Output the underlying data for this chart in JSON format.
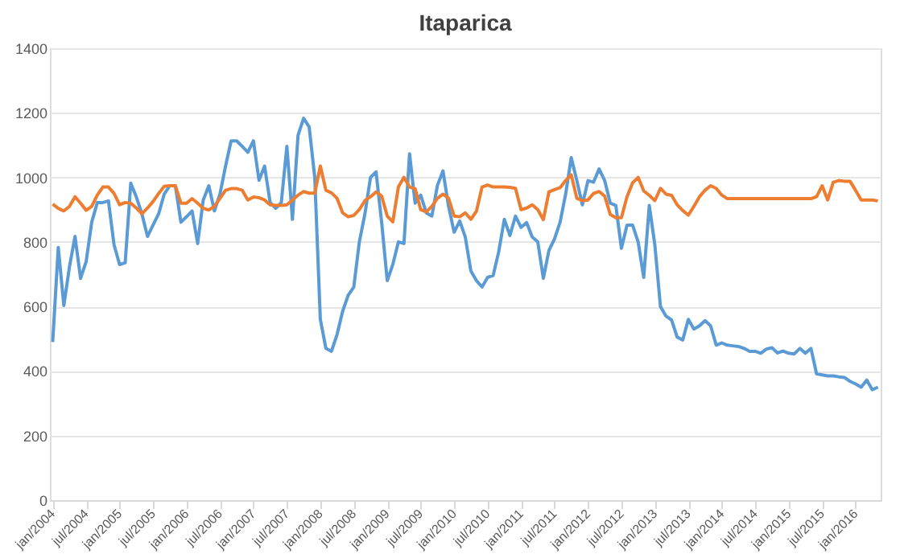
{
  "chart_data": {
    "type": "line",
    "title": "Itaparica",
    "categories": [
      "jan/2004",
      null,
      null,
      null,
      null,
      null,
      "jul/2004",
      null,
      null,
      null,
      null,
      null,
      "jan/2005",
      null,
      null,
      null,
      null,
      null,
      "jul/2005",
      null,
      null,
      null,
      null,
      null,
      "jan/2006",
      null,
      null,
      null,
      null,
      null,
      "jul/2006",
      null,
      null,
      null,
      null,
      null,
      "jan/2007",
      null,
      null,
      null,
      null,
      null,
      "jul/2007",
      null,
      null,
      null,
      null,
      null,
      "jan/2008",
      null,
      null,
      null,
      null,
      null,
      "jul/2008",
      null,
      null,
      null,
      null,
      null,
      "jan/2009",
      null,
      null,
      null,
      null,
      null,
      "jul/2009",
      null,
      null,
      null,
      null,
      null,
      "jan/2010",
      null,
      null,
      null,
      null,
      null,
      "jul/2010",
      null,
      null,
      null,
      null,
      null,
      "jan/2011",
      null,
      null,
      null,
      null,
      null,
      "jul/2011",
      null,
      null,
      null,
      null,
      null,
      "jan/2012",
      null,
      null,
      null,
      null,
      null,
      "jul/2012",
      null,
      null,
      null,
      null,
      null,
      "jan/2013",
      null,
      null,
      null,
      null,
      null,
      "jul/2013",
      null,
      null,
      null,
      null,
      null,
      "jan/2014",
      null,
      null,
      null,
      null,
      null,
      "jul/2014",
      null,
      null,
      null,
      null,
      null,
      "jan/2015",
      null,
      null,
      null,
      null,
      null,
      "jul/2015",
      null,
      null,
      null,
      null,
      null,
      "jan/2016",
      null,
      null,
      null,
      null
    ],
    "series": [
      {
        "color": "#5b9bd5",
        "values": [
          490,
          783,
          603,
          722,
          817,
          687,
          739,
          861,
          922,
          922,
          927,
          791,
          730,
          735,
          982,
          939,
          887,
          817,
          852,
          887,
          948,
          974,
          974,
          861,
          878,
          896,
          795,
          930,
          974,
          896,
          948,
          1035,
          1113,
          1113,
          1096,
          1078,
          1113,
          991,
          1035,
          922,
          904,
          922,
          1096,
          870,
          1130,
          1183,
          1156,
          1000,
          560,
          470,
          461,
          513,
          585,
          635,
          660,
          800,
          887,
          1000,
          1017,
          860,
          680,
          730,
          800,
          795,
          1073,
          920,
          945,
          890,
          880,
          975,
          1020,
          910,
          830,
          865,
          815,
          710,
          680,
          660,
          690,
          696,
          770,
          870,
          820,
          880,
          845,
          860,
          815,
          800,
          687,
          774,
          809,
          861,
          948,
          1061,
          990,
          915,
          990,
          985,
          1026,
          990,
          920,
          913,
          780,
          852,
          852,
          800,
          690,
          913,
          790,
          600,
          570,
          558,
          505,
          496,
          560,
          530,
          540,
          556,
          540,
          480,
          487,
          480,
          478,
          476,
          470,
          461,
          461,
          455,
          468,
          472,
          456,
          462,
          455,
          453,
          470,
          455,
          470,
          391,
          388,
          385,
          385,
          382,
          380,
          368,
          360,
          350,
          372,
          342,
          350
        ]
      },
      {
        "color": "#ed7d31",
        "values": [
          917,
          904,
          896,
          910,
          940,
          920,
          898,
          910,
          945,
          970,
          970,
          950,
          915,
          922,
          920,
          905,
          887,
          905,
          925,
          950,
          972,
          974,
          974,
          920,
          920,
          934,
          920,
          904,
          899,
          910,
          935,
          960,
          965,
          965,
          960,
          930,
          939,
          937,
          930,
          915,
          913,
          913,
          915,
          930,
          945,
          956,
          951,
          951,
          1035,
          960,
          952,
          935,
          890,
          878,
          882,
          900,
          928,
          940,
          955,
          942,
          880,
          862,
          970,
          1000,
          970,
          965,
          900,
          893,
          910,
          935,
          948,
          935,
          880,
          878,
          890,
          870,
          895,
          970,
          976,
          970,
          970,
          970,
          969,
          966,
          900,
          905,
          915,
          900,
          869,
          955,
          962,
          968,
          990,
          1008,
          935,
          928,
          930,
          950,
          956,
          942,
          885,
          875,
          875,
          940,
          983,
          1000,
          958,
          944,
          928,
          966,
          948,
          944,
          915,
          897,
          883,
          910,
          940,
          960,
          974,
          966,
          945,
          934,
          934,
          934,
          934,
          934,
          934,
          934,
          934,
          934,
          934,
          934,
          934,
          934,
          934,
          934,
          934,
          940,
          974,
          930,
          985,
          990,
          988,
          988,
          960,
          930,
          930,
          930,
          927
        ]
      }
    ],
    "ylim": [
      0,
      1400
    ],
    "yticks": [
      0,
      200,
      400,
      600,
      800,
      1000,
      1200,
      1400
    ],
    "grid": "y",
    "legend": false,
    "marker": "none",
    "line_style": "solid"
  }
}
